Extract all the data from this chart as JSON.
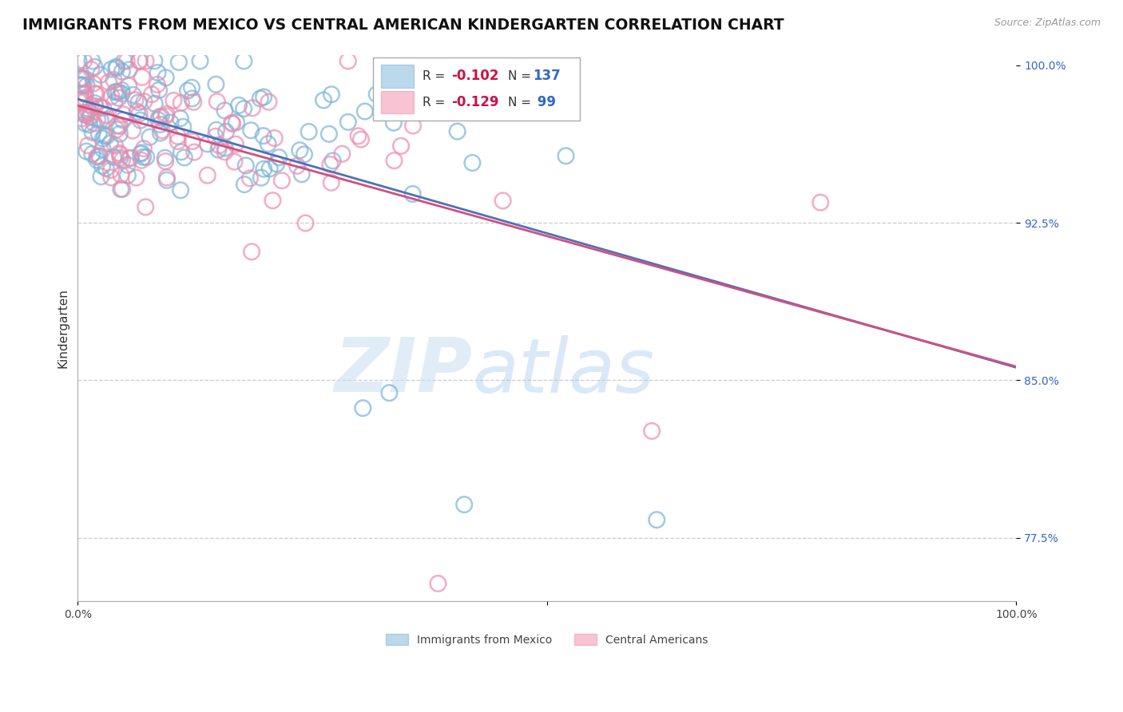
{
  "title": "IMMIGRANTS FROM MEXICO VS CENTRAL AMERICAN KINDERGARTEN CORRELATION CHART",
  "source_text": "Source: ZipAtlas.com",
  "ylabel": "Kindergarten",
  "xlim": [
    0.0,
    1.0
  ],
  "ylim": [
    0.745,
    1.005
  ],
  "yticks": [
    0.775,
    0.85,
    0.925,
    1.0
  ],
  "ytick_labels": [
    "77.5%",
    "85.0%",
    "92.5%",
    "100.0%"
  ],
  "r_mexico": -0.102,
  "r_central": -0.129,
  "n_mexico": 137,
  "n_central": 99,
  "color_mexico": "#7ab3d9",
  "color_central": "#f08bab",
  "trend_color_mexico": "#5070b8",
  "trend_color_central": "#d05080",
  "background_color": "#ffffff",
  "watermark_color": "#ccdff0",
  "grid_color": "#cccccc",
  "title_fontsize": 13.5,
  "axis_label_fontsize": 11,
  "tick_label_fontsize": 10,
  "legend_r_color": "#cc1144",
  "legend_n_color": "#3366cc",
  "legend_box_color": "#aaaaaa"
}
